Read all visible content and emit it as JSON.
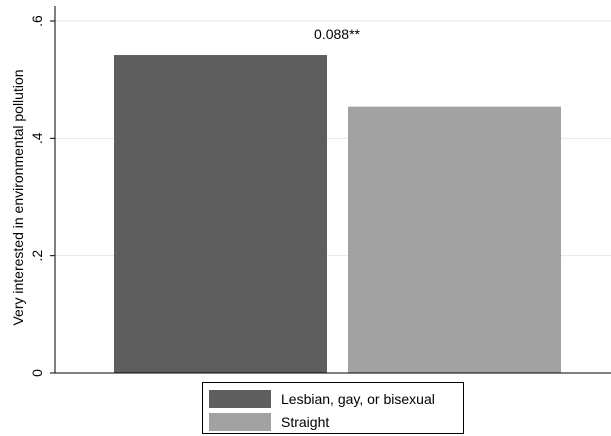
{
  "chart_data": {
    "type": "bar",
    "categories": [
      "Lesbian, gay, or bisexual",
      "Straight"
    ],
    "values": [
      0.542,
      0.454
    ],
    "colors": [
      "#5e5e5e",
      "#a2a2a2"
    ],
    "ylabel": "Very interested in environmental pollution",
    "ylim": [
      0,
      0.6
    ],
    "yticks": [
      {
        "value": 0,
        "label": "0"
      },
      {
        "value": 0.2,
        "label": ".2"
      },
      {
        "value": 0.4,
        "label": ".4"
      },
      {
        "value": 0.6,
        "label": ".6"
      }
    ],
    "grid": true,
    "legend_position": "bottom",
    "annotation": "0.088**"
  }
}
